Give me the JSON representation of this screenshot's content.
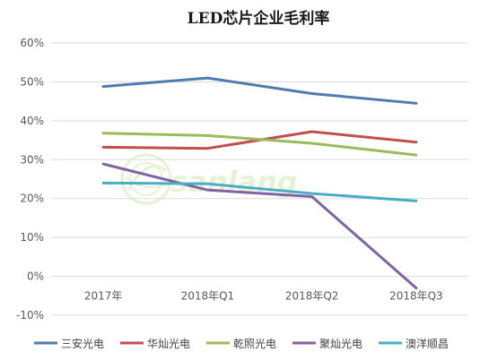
{
  "chart_data": {
    "type": "line",
    "title": "LED芯片企业毛利率",
    "categories": [
      "2017年",
      "2018年Q1",
      "2018年Q2",
      "2018年Q3"
    ],
    "ylim": [
      -10,
      60
    ],
    "yticks": [
      -10,
      0,
      10,
      20,
      30,
      40,
      50,
      60
    ],
    "ytick_suffix": "%",
    "grid": true,
    "legend_position": "bottom",
    "series": [
      {
        "name": "三安光电",
        "color": "#4f7cae",
        "values": [
          48.8,
          51.0,
          47.0,
          44.5
        ]
      },
      {
        "name": "华灿光电",
        "color": "#c0504d",
        "values": [
          33.2,
          32.9,
          37.2,
          34.5
        ]
      },
      {
        "name": "乾照光电",
        "color": "#9bbb59",
        "values": [
          36.8,
          36.2,
          34.2,
          31.2
        ]
      },
      {
        "name": "聚灿光电",
        "color": "#8064a2",
        "values": [
          28.9,
          22.2,
          20.5,
          -3.0
        ]
      },
      {
        "name": "澳洋顺昌",
        "color": "#4bacc6",
        "values": [
          24.0,
          23.8,
          21.3,
          19.4
        ]
      }
    ]
  }
}
